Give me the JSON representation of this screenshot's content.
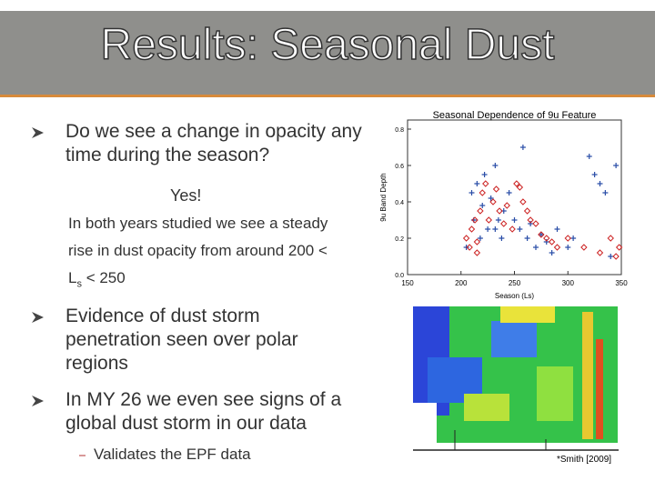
{
  "title": "Results: Seasonal Dust",
  "bullets": [
    "Do we see a change in opacity any time during the season?",
    "Evidence of dust storm penetration seen over polar regions",
    "In MY 26 we even see signs of a global dust storm in our data"
  ],
  "answer": "Yes!",
  "note": [
    "In both years studied we see a steady rise in dust opacity from around 200 < L",
    "s",
    " < 250"
  ],
  "sub_bullet": "Validates the EPF data",
  "citation": "*Smith [2009]",
  "chart_data": {
    "type": "scatter",
    "title": "Seasonal Dependence of 9u Feature",
    "x_label": "Season (Ls)",
    "y_label": "9u Band Depth",
    "xlim": [
      150,
      350
    ],
    "ylim": [
      0,
      0.85
    ],
    "xticks": [
      150,
      200,
      250,
      300,
      350
    ],
    "yticks": [
      {
        "value": 0,
        "label": "0.0"
      },
      0.2,
      0.4,
      0.6,
      0.8
    ],
    "series": [
      {
        "color": "#2a4ea8",
        "marker": "plus",
        "x": [
          205,
          210,
          212,
          215,
          220,
          222,
          225,
          228,
          232,
          235,
          238,
          240,
          245,
          250,
          255,
          258,
          262,
          265,
          270,
          275,
          280,
          285,
          290,
          300,
          305,
          320,
          325,
          330,
          335,
          340,
          345,
          232,
          218
        ],
        "y": [
          0.15,
          0.45,
          0.3,
          0.5,
          0.38,
          0.55,
          0.25,
          0.42,
          0.6,
          0.3,
          0.2,
          0.35,
          0.45,
          0.3,
          0.25,
          0.7,
          0.2,
          0.28,
          0.15,
          0.22,
          0.18,
          0.12,
          0.25,
          0.15,
          0.2,
          0.65,
          0.55,
          0.5,
          0.45,
          0.1,
          0.6,
          0.25,
          0.2
        ]
      },
      {
        "color": "#cc2222",
        "marker": "diamond",
        "x": [
          205,
          208,
          210,
          213,
          215,
          218,
          220,
          223,
          226,
          230,
          233,
          236,
          240,
          243,
          248,
          252,
          255,
          258,
          262,
          265,
          270,
          275,
          280,
          285,
          290,
          300,
          315,
          330,
          340,
          345,
          348,
          215
        ],
        "y": [
          0.2,
          0.15,
          0.25,
          0.3,
          0.18,
          0.35,
          0.45,
          0.5,
          0.3,
          0.4,
          0.47,
          0.35,
          0.28,
          0.38,
          0.25,
          0.5,
          0.48,
          0.4,
          0.35,
          0.3,
          0.28,
          0.22,
          0.2,
          0.18,
          0.15,
          0.2,
          0.15,
          0.12,
          0.2,
          0.1,
          0.15,
          0.12
        ]
      }
    ]
  }
}
